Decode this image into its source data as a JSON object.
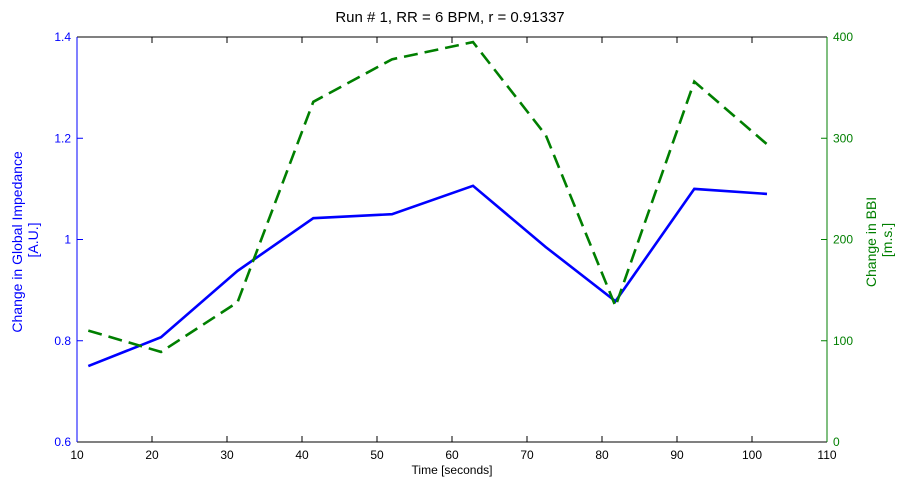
{
  "chart_data": {
    "type": "line",
    "title": "Run # 1, RR = 6 BPM, r = 0.91337",
    "xlabel": "Time [seconds]",
    "ylabel_left": [
      "Change in Global Impedance",
      "[A.U.]"
    ],
    "ylabel_right": [
      "Change in BBI",
      "[m.s.]"
    ],
    "xlim": [
      10,
      110
    ],
    "ylim_left": [
      0.6,
      1.4
    ],
    "ylim_right": [
      0,
      400
    ],
    "xticks": [
      "10",
      "20",
      "30",
      "40",
      "50",
      "60",
      "70",
      "80",
      "90",
      "100",
      "110"
    ],
    "yticks_left": [
      "0.6",
      "0.8",
      "1",
      "1.2",
      "1.4"
    ],
    "yticks_right": [
      "0",
      "100",
      "200",
      "300",
      "400"
    ],
    "grid": false,
    "series": [
      {
        "axis": "left",
        "color": "#0000ff",
        "style": "solid",
        "x": [
          11.5,
          21.2,
          31.4,
          41.5,
          52.0,
          62.8,
          72.5,
          81.8,
          92.3,
          102.0
        ],
        "values": [
          0.75,
          0.807,
          0.938,
          1.042,
          1.05,
          1.106,
          0.985,
          0.878,
          1.1,
          1.09
        ]
      },
      {
        "axis": "right",
        "color": "#007f00",
        "style": "dashed",
        "x": [
          11.5,
          21.2,
          31.4,
          41.5,
          52.0,
          62.8,
          72.5,
          81.8,
          92.3,
          102.0
        ],
        "values": [
          110,
          89,
          138,
          336,
          378,
          395,
          303,
          134,
          356,
          294
        ]
      }
    ]
  }
}
